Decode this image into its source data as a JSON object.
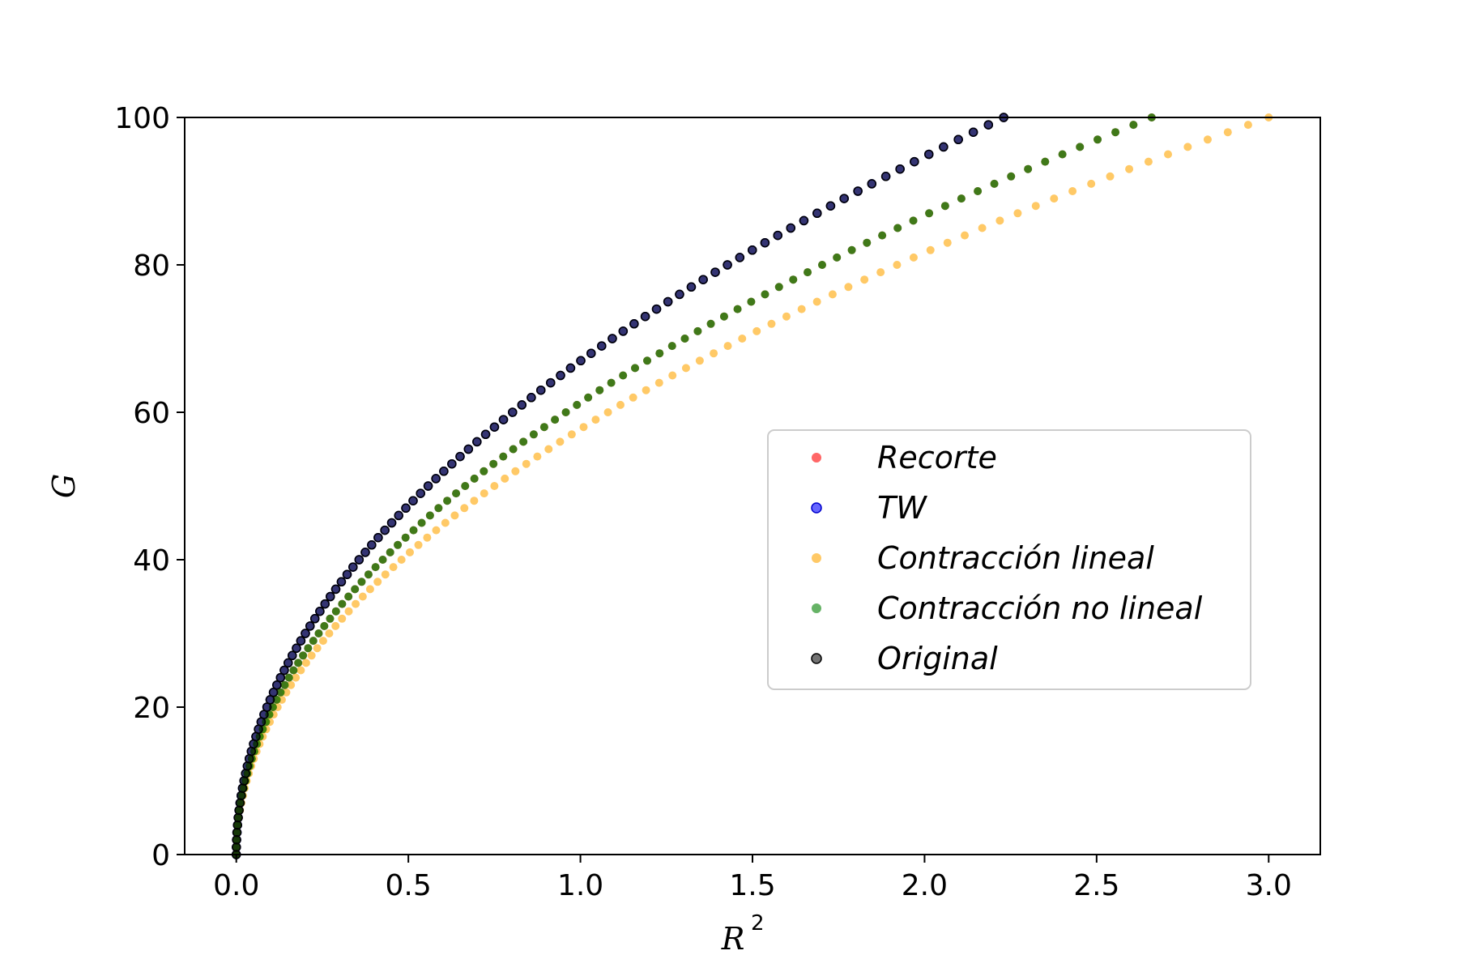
{
  "chart_data": {
    "type": "scatter",
    "title": "",
    "xlabel": "R",
    "xlabel_sup": "2",
    "ylabel": "G",
    "xlim": [
      -0.15,
      3.15
    ],
    "ylim": [
      0,
      100
    ],
    "xticks": [
      "0.0",
      "0.5",
      "1.0",
      "1.5",
      "2.0",
      "2.5",
      "3.0"
    ],
    "yticks": [
      "0",
      "20",
      "40",
      "60",
      "80",
      "100"
    ],
    "grid": false,
    "legend_position": "center-right",
    "series": [
      {
        "name": "Recorte",
        "color": "#ff0000",
        "xmax": 2.66
      },
      {
        "name": "TW",
        "color": "#0000ff",
        "xmax": 2.23
      },
      {
        "name": "Contracción lineal",
        "color": "#ffa500",
        "xmax": 3.0
      },
      {
        "name": "Contracción no lineal",
        "color": "#008000",
        "xmax": 2.66
      },
      {
        "name": "Original",
        "color": "#000000",
        "xmax": 2.23
      }
    ],
    "y_values": "0 to 100, step 1; x = xmax * (y/100)^2"
  }
}
